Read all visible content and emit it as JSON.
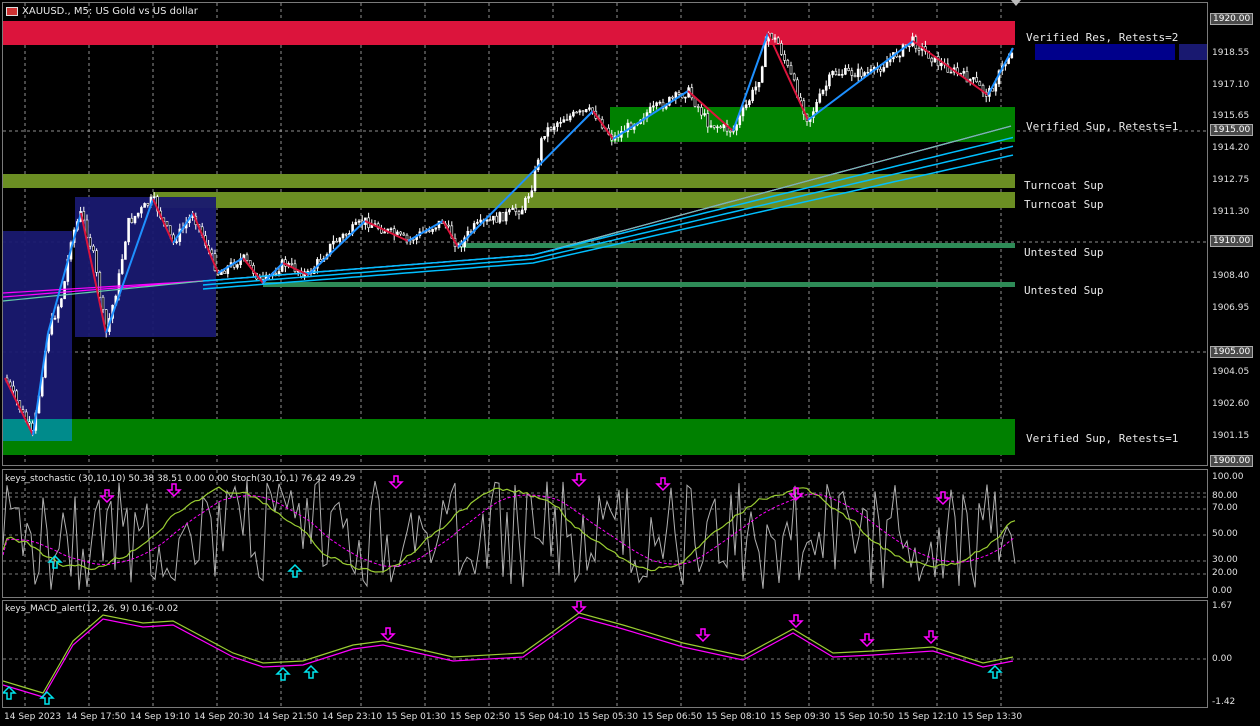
{
  "window": {
    "title": "XAUUSD., M5:  US Gold vs US dollar",
    "flag_icon": "chart-window-icon"
  },
  "main_axis": {
    "labels": [
      "1920.00",
      "1918.55",
      "1917.10",
      "1915.65",
      "1915.00",
      "1914.20",
      "1912.75",
      "1911.30",
      "1910.00",
      "1908.40",
      "1906.95",
      "1905.00",
      "1904.05",
      "1902.60",
      "1901.15",
      "1900.00"
    ],
    "boxed": [
      "1920.00",
      "1915.00",
      "1910.00",
      "1905.00",
      "1900.00"
    ]
  },
  "zones": [
    {
      "label": "Verified Res, Retests=2",
      "color": "#dc143c"
    },
    {
      "label": "Verified Sup, Retests=1",
      "color": "#008000"
    },
    {
      "label": "Turncoat Sup",
      "color": "#6b8e23"
    },
    {
      "label": "Turncoat Sup",
      "color": "#6b8e23"
    },
    {
      "label": "Untested Sup",
      "color": "#2e8b57"
    },
    {
      "label": "Untested Sup",
      "color": "#2e8b57"
    },
    {
      "label": "Verified Sup, Retests=1",
      "color": "#008000"
    }
  ],
  "stoch": {
    "title": "keys_stochastic (30,10,10) 50.38 38.51 0.00 0.00 Stoch(30,10,1) 76.42 49.29",
    "labels": [
      "100.00",
      "80.00",
      "70.00",
      "50.00",
      "30.00",
      "20.00",
      "0.00"
    ]
  },
  "macd": {
    "title": "keys_MACD_alert(12, 26, 9) 0.16 -0.02",
    "labels": [
      "1.67",
      "0.00",
      "-1.42"
    ]
  },
  "time_axis": [
    "14 Sep 2023",
    "14 Sep 17:50",
    "14 Sep 19:10",
    "14 Sep 20:30",
    "14 Sep 21:50",
    "14 Sep 23:10",
    "15 Sep 01:30",
    "15 Sep 02:50",
    "15 Sep 04:10",
    "15 Sep 05:30",
    "15 Sep 06:50",
    "15 Sep 08:10",
    "15 Sep 09:30",
    "15 Sep 10:50",
    "15 Sep 12:10",
    "15 Sep 13:30"
  ],
  "colors": {
    "bull_zigzag": "#1e90ff",
    "bear_zigzag": "#dc143c",
    "ma": "#00bfff",
    "ma_ribbon_mag": "#ff00ff",
    "stoch_main": "#9acd32",
    "stoch_sig": "#ff00ff",
    "stoch_raw": "#b0b0b0",
    "arrow_up": "#00e5ee",
    "arrow_down": "#ff00ff"
  }
}
